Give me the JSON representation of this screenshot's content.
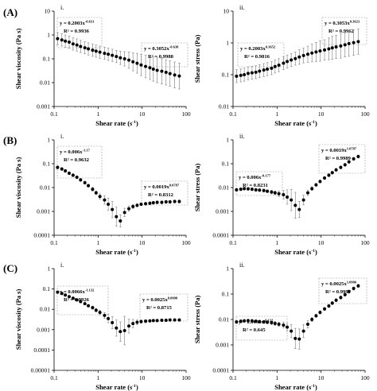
{
  "figure": {
    "rows": [
      {
        "label": "(A)",
        "left_tag": "i.",
        "right_tag": "ii."
      },
      {
        "label": "(B)",
        "left_tag": "i.",
        "right_tag": "ii."
      },
      {
        "label": "(C)",
        "left_tag": "i.",
        "right_tag": "ii."
      }
    ],
    "superscript_minus_one": "-1"
  },
  "chart_data": [
    {
      "id": "A-i",
      "type": "scatter",
      "xscale": "log",
      "yscale": "log",
      "xlim": [
        0.1,
        100
      ],
      "ylim": [
        0.001,
        10
      ],
      "xticks": [
        "0.1",
        "1",
        "10",
        "100"
      ],
      "yticks": [
        "0.001",
        "0.01",
        "0.1",
        "1",
        "10"
      ],
      "xlabel": "Shear rate (s",
      "ylabel": "Shear viscosity (Pa s)",
      "grid": false,
      "points": [
        [
          0.12,
          0.7
        ],
        [
          0.15,
          0.62
        ],
        [
          0.18,
          0.55
        ],
        [
          0.22,
          0.5
        ],
        [
          0.27,
          0.42
        ],
        [
          0.33,
          0.38
        ],
        [
          0.4,
          0.33
        ],
        [
          0.5,
          0.29
        ],
        [
          0.6,
          0.26
        ],
        [
          0.75,
          0.23
        ],
        [
          0.9,
          0.21
        ],
        [
          1.1,
          0.19
        ],
        [
          1.4,
          0.17
        ],
        [
          1.7,
          0.155
        ],
        [
          2.1,
          0.14
        ],
        [
          2.6,
          0.125
        ],
        [
          3.2,
          0.11
        ],
        [
          4,
          0.1
        ],
        [
          5,
          0.088
        ],
        [
          6.2,
          0.075
        ],
        [
          7.7,
          0.065
        ],
        [
          9.5,
          0.055
        ],
        [
          12,
          0.048
        ],
        [
          15,
          0.042
        ],
        [
          18,
          0.037
        ],
        [
          22,
          0.033
        ],
        [
          28,
          0.03
        ],
        [
          35,
          0.027
        ],
        [
          43,
          0.024
        ],
        [
          55,
          0.021
        ],
        [
          70,
          0.019
        ]
      ],
      "err_factor": [
        1.8,
        1.8,
        1.8,
        1.8,
        1.8,
        1.8,
        1.8,
        1.8,
        1.8,
        1.8,
        1.8,
        1.8,
        1.8,
        1.8,
        1.8,
        1.8,
        1.9,
        2,
        2.2,
        2.4,
        2.6,
        2.8,
        3,
        3.1,
        3.2,
        3.3,
        3.4,
        3.4,
        3.4,
        3.5,
        3.5
      ],
      "annotations": [
        {
          "coef": "y = 0.2003x",
          "exp": "-0.631",
          "r2": "R² = 0.9936"
        },
        {
          "coef": "y = 0.3052x",
          "exp": "-0.638",
          "r2": "R² = 0.9988"
        }
      ]
    },
    {
      "id": "A-ii",
      "type": "scatter",
      "xscale": "log",
      "yscale": "log",
      "xlim": [
        0.1,
        100
      ],
      "ylim": [
        0.01,
        10
      ],
      "xticks": [
        "0.1",
        "1",
        "10",
        "100"
      ],
      "yticks": [
        "0.01",
        "0.1",
        "1",
        "10"
      ],
      "xlabel": "Shear rate (s",
      "ylabel": "Shear stress (Pa)",
      "grid": false,
      "points": [
        [
          0.12,
          0.09
        ],
        [
          0.15,
          0.095
        ],
        [
          0.18,
          0.1
        ],
        [
          0.22,
          0.11
        ],
        [
          0.27,
          0.115
        ],
        [
          0.33,
          0.12
        ],
        [
          0.4,
          0.13
        ],
        [
          0.5,
          0.14
        ],
        [
          0.6,
          0.15
        ],
        [
          0.75,
          0.16
        ],
        [
          0.9,
          0.18
        ],
        [
          1.1,
          0.2
        ],
        [
          1.4,
          0.23
        ],
        [
          1.7,
          0.26
        ],
        [
          2.1,
          0.29
        ],
        [
          2.6,
          0.32
        ],
        [
          3.2,
          0.36
        ],
        [
          4,
          0.4
        ],
        [
          5,
          0.44
        ],
        [
          6.2,
          0.48
        ],
        [
          7.7,
          0.52
        ],
        [
          9.5,
          0.56
        ],
        [
          12,
          0.6
        ],
        [
          15,
          0.65
        ],
        [
          18,
          0.7
        ],
        [
          22,
          0.75
        ],
        [
          28,
          0.8
        ],
        [
          35,
          0.87
        ],
        [
          43,
          0.95
        ],
        [
          55,
          1.02
        ],
        [
          70,
          1.1
        ]
      ],
      "err_factor": [
        1.6,
        1.6,
        1.6,
        1.6,
        1.6,
        1.6,
        1.6,
        1.6,
        1.6,
        1.6,
        1.6,
        1.6,
        1.6,
        1.6,
        1.6,
        1.6,
        1.7,
        1.7,
        1.8,
        1.9,
        2,
        2.1,
        2.1,
        2.2,
        2.3,
        2.3,
        2.4,
        2.4,
        2.5,
        2.5,
        2.5
      ],
      "annotations": [
        {
          "coef": "y = 0.2003x",
          "exp": "0.3652",
          "r2": "R² = 0.9816"
        },
        {
          "coef": "y = 0.3053x",
          "exp": "0.3623",
          "r2": "R² = 0.9962"
        }
      ]
    },
    {
      "id": "B-i",
      "type": "scatter",
      "xscale": "log",
      "yscale": "log",
      "xlim": [
        0.1,
        100
      ],
      "ylim": [
        0.0001,
        1
      ],
      "xticks": [
        "0.1",
        "1",
        "10",
        "100"
      ],
      "yticks": [
        "0.0001",
        "0.001",
        "0.01",
        "0.1",
        "1"
      ],
      "xlabel": "Shear rate (s",
      "ylabel": "Shear viscosity (Pa s)",
      "grid": false,
      "points": [
        [
          0.12,
          0.07
        ],
        [
          0.15,
          0.06
        ],
        [
          0.18,
          0.05
        ],
        [
          0.22,
          0.04
        ],
        [
          0.27,
          0.033
        ],
        [
          0.33,
          0.027
        ],
        [
          0.4,
          0.021
        ],
        [
          0.5,
          0.016
        ],
        [
          0.6,
          0.012
        ],
        [
          0.75,
          0.0085
        ],
        [
          0.9,
          0.006
        ],
        [
          1.1,
          0.0042
        ],
        [
          1.4,
          0.003
        ],
        [
          1.7,
          0.002
        ],
        [
          2.1,
          0.0012
        ],
        [
          2.6,
          0.0006
        ],
        [
          3.2,
          0.0004
        ],
        [
          4,
          0.0009
        ],
        [
          5,
          0.0013
        ],
        [
          6.2,
          0.0016
        ],
        [
          7.7,
          0.0018
        ],
        [
          9.5,
          0.002
        ],
        [
          12,
          0.0021
        ],
        [
          15,
          0.0022
        ],
        [
          18,
          0.0023
        ],
        [
          22,
          0.0024
        ],
        [
          28,
          0.0024
        ],
        [
          35,
          0.0025
        ],
        [
          43,
          0.0025
        ],
        [
          55,
          0.0026
        ],
        [
          70,
          0.0026
        ]
      ],
      "err_factor": [
        1.15,
        1.15,
        1.15,
        1.15,
        1.15,
        1.15,
        1.15,
        1.15,
        1.15,
        1.2,
        1.2,
        1.3,
        1.5,
        1.8,
        2.2,
        2.5,
        1.8,
        1.5,
        1.3,
        1.2,
        1.15,
        1.15,
        1.15,
        1.15,
        1.15,
        1.15,
        1.15,
        1.15,
        1.15,
        1.15,
        1.15
      ],
      "annotations": [
        {
          "coef": "y = 0.006x",
          "exp": "-1.17",
          "r2": "R² = 0.9632"
        },
        {
          "coef": "y = 0.0019x",
          "exp": "0.0787",
          "r2": "R² = 0.8312"
        }
      ]
    },
    {
      "id": "B-ii",
      "type": "scatter",
      "xscale": "log",
      "yscale": "log",
      "xlim": [
        0.1,
        100
      ],
      "ylim": [
        0.0001,
        1
      ],
      "xticks": [
        "0.1",
        "1",
        "10",
        "100"
      ],
      "yticks": [
        "0.0001",
        "0.001",
        "0.01",
        "0.1",
        "1"
      ],
      "xlabel": "Shear rate (s",
      "ylabel": "Shear stress (Pa)",
      "grid": false,
      "points": [
        [
          0.12,
          0.008
        ],
        [
          0.15,
          0.0085
        ],
        [
          0.18,
          0.009
        ],
        [
          0.22,
          0.0088
        ],
        [
          0.27,
          0.0085
        ],
        [
          0.33,
          0.008
        ],
        [
          0.4,
          0.0078
        ],
        [
          0.5,
          0.0075
        ],
        [
          0.6,
          0.007
        ],
        [
          0.75,
          0.0065
        ],
        [
          0.9,
          0.006
        ],
        [
          1.1,
          0.0055
        ],
        [
          1.4,
          0.005
        ],
        [
          1.7,
          0.004
        ],
        [
          2.1,
          0.003
        ],
        [
          2.6,
          0.0018
        ],
        [
          3.2,
          0.0012
        ],
        [
          4,
          0.003
        ],
        [
          5,
          0.006
        ],
        [
          6.2,
          0.009
        ],
        [
          7.7,
          0.013
        ],
        [
          9.5,
          0.018
        ],
        [
          12,
          0.025
        ],
        [
          15,
          0.033
        ],
        [
          18,
          0.042
        ],
        [
          22,
          0.055
        ],
        [
          28,
          0.07
        ],
        [
          35,
          0.09
        ],
        [
          43,
          0.12
        ],
        [
          55,
          0.16
        ],
        [
          70,
          0.2
        ]
      ],
      "err_factor": [
        1.15,
        1.15,
        1.15,
        1.15,
        1.15,
        1.15,
        1.15,
        1.15,
        1.15,
        1.2,
        1.2,
        1.3,
        1.5,
        2,
        2.8,
        3.5,
        2.2,
        1.6,
        1.3,
        1.2,
        1.15,
        1.15,
        1.15,
        1.15,
        1.15,
        1.15,
        1.15,
        1.15,
        1.15,
        1.15,
        1.15
      ],
      "annotations": [
        {
          "coef": "y = 0.006x",
          "exp": "-0.177",
          "r2": "R² = 0.8231"
        },
        {
          "coef": "y = 0.0019x",
          "exp": "1.0787",
          "r2": "R² = 0.9989"
        }
      ]
    },
    {
      "id": "C-i",
      "type": "scatter",
      "xscale": "log",
      "yscale": "log",
      "xlim": [
        0.1,
        100
      ],
      "ylim": [
        1e-05,
        1
      ],
      "xticks": [
        "0.1",
        "1",
        "10",
        "100"
      ],
      "yticks": [
        "0.00001",
        "0.0001",
        "0.001",
        "0.01",
        "0.1",
        "1"
      ],
      "xlabel": "Shear rate (s",
      "ylabel": "Shear viscosity (Pa s)",
      "grid": false,
      "points": [
        [
          0.12,
          0.07
        ],
        [
          0.15,
          0.06
        ],
        [
          0.18,
          0.05
        ],
        [
          0.22,
          0.042
        ],
        [
          0.27,
          0.035
        ],
        [
          0.33,
          0.029
        ],
        [
          0.4,
          0.024
        ],
        [
          0.5,
          0.019
        ],
        [
          0.6,
          0.015
        ],
        [
          0.75,
          0.012
        ],
        [
          0.9,
          0.009
        ],
        [
          1.1,
          0.007
        ],
        [
          1.4,
          0.005
        ],
        [
          1.7,
          0.0035
        ],
        [
          2.1,
          0.0022
        ],
        [
          2.6,
          0.0012
        ],
        [
          3.2,
          0.0008
        ],
        [
          4,
          0.0009
        ],
        [
          5,
          0.0015
        ],
        [
          6.2,
          0.002
        ],
        [
          7.7,
          0.0023
        ],
        [
          9.5,
          0.0025
        ],
        [
          12,
          0.0026
        ],
        [
          15,
          0.0027
        ],
        [
          18,
          0.0028
        ],
        [
          22,
          0.0028
        ],
        [
          28,
          0.0029
        ],
        [
          35,
          0.0029
        ],
        [
          43,
          0.003
        ],
        [
          55,
          0.003
        ],
        [
          70,
          0.003
        ]
      ],
      "err_factor": [
        1.15,
        1.15,
        1.15,
        1.15,
        1.15,
        1.15,
        1.15,
        1.15,
        1.15,
        1.2,
        1.2,
        1.3,
        1.4,
        1.6,
        2,
        2.5,
        3,
        5,
        2.2,
        1.6,
        1.3,
        1.2,
        1.2,
        1.15,
        1.15,
        1.15,
        1.15,
        1.15,
        1.15,
        1.15,
        1.15
      ],
      "annotations": [
        {
          "coef": "y = 0.0066x",
          "exp": "-1.132",
          "r2": "R² = 0.9926"
        },
        {
          "coef": "y = 0.0025x",
          "exp": "0.0908",
          "r2": "R² = 0.8715"
        }
      ]
    },
    {
      "id": "C-ii",
      "type": "scatter",
      "xscale": "log",
      "yscale": "log",
      "xlim": [
        0.1,
        100
      ],
      "ylim": [
        0.0001,
        1
      ],
      "xticks": [
        "0.1",
        "1",
        "10",
        "100"
      ],
      "yticks": [
        "0.0001",
        "0.001",
        "0.01",
        "0.1",
        "1"
      ],
      "xlabel": "Shear rate (s",
      "ylabel": "Shear stress (Pa)",
      "grid": false,
      "points": [
        [
          0.12,
          0.008
        ],
        [
          0.15,
          0.0085
        ],
        [
          0.18,
          0.0088
        ],
        [
          0.22,
          0.009
        ],
        [
          0.27,
          0.0088
        ],
        [
          0.33,
          0.0085
        ],
        [
          0.4,
          0.0082
        ],
        [
          0.5,
          0.008
        ],
        [
          0.6,
          0.0078
        ],
        [
          0.75,
          0.0075
        ],
        [
          0.9,
          0.007
        ],
        [
          1.1,
          0.0065
        ],
        [
          1.4,
          0.006
        ],
        [
          1.7,
          0.005
        ],
        [
          2.1,
          0.0035
        ],
        [
          2.6,
          0.0018
        ],
        [
          3.2,
          0.0017
        ],
        [
          4,
          0.0035
        ],
        [
          5,
          0.0065
        ],
        [
          6.2,
          0.01
        ],
        [
          7.7,
          0.014
        ],
        [
          9.5,
          0.019
        ],
        [
          12,
          0.026
        ],
        [
          15,
          0.034
        ],
        [
          18,
          0.044
        ],
        [
          22,
          0.057
        ],
        [
          28,
          0.073
        ],
        [
          35,
          0.095
        ],
        [
          43,
          0.125
        ],
        [
          55,
          0.165
        ],
        [
          70,
          0.21
        ]
      ],
      "err_factor": [
        1.15,
        1.15,
        1.15,
        1.15,
        1.15,
        1.15,
        1.15,
        1.15,
        1.15,
        1.2,
        1.2,
        1.2,
        1.3,
        1.4,
        1.8,
        2.5,
        2.5,
        1.8,
        1.4,
        1.2,
        1.15,
        1.15,
        1.15,
        1.15,
        1.15,
        1.15,
        1.15,
        1.15,
        1.15,
        1.15,
        1.15
      ],
      "annotations": [
        {
          "coef": "y = 0.0066x",
          "exp": "-0.132",
          "r2": "R² = 0.645"
        },
        {
          "coef": "y = 0.0025x",
          "exp": "1.0906",
          "r2": "R² = 0.9997"
        }
      ]
    }
  ]
}
